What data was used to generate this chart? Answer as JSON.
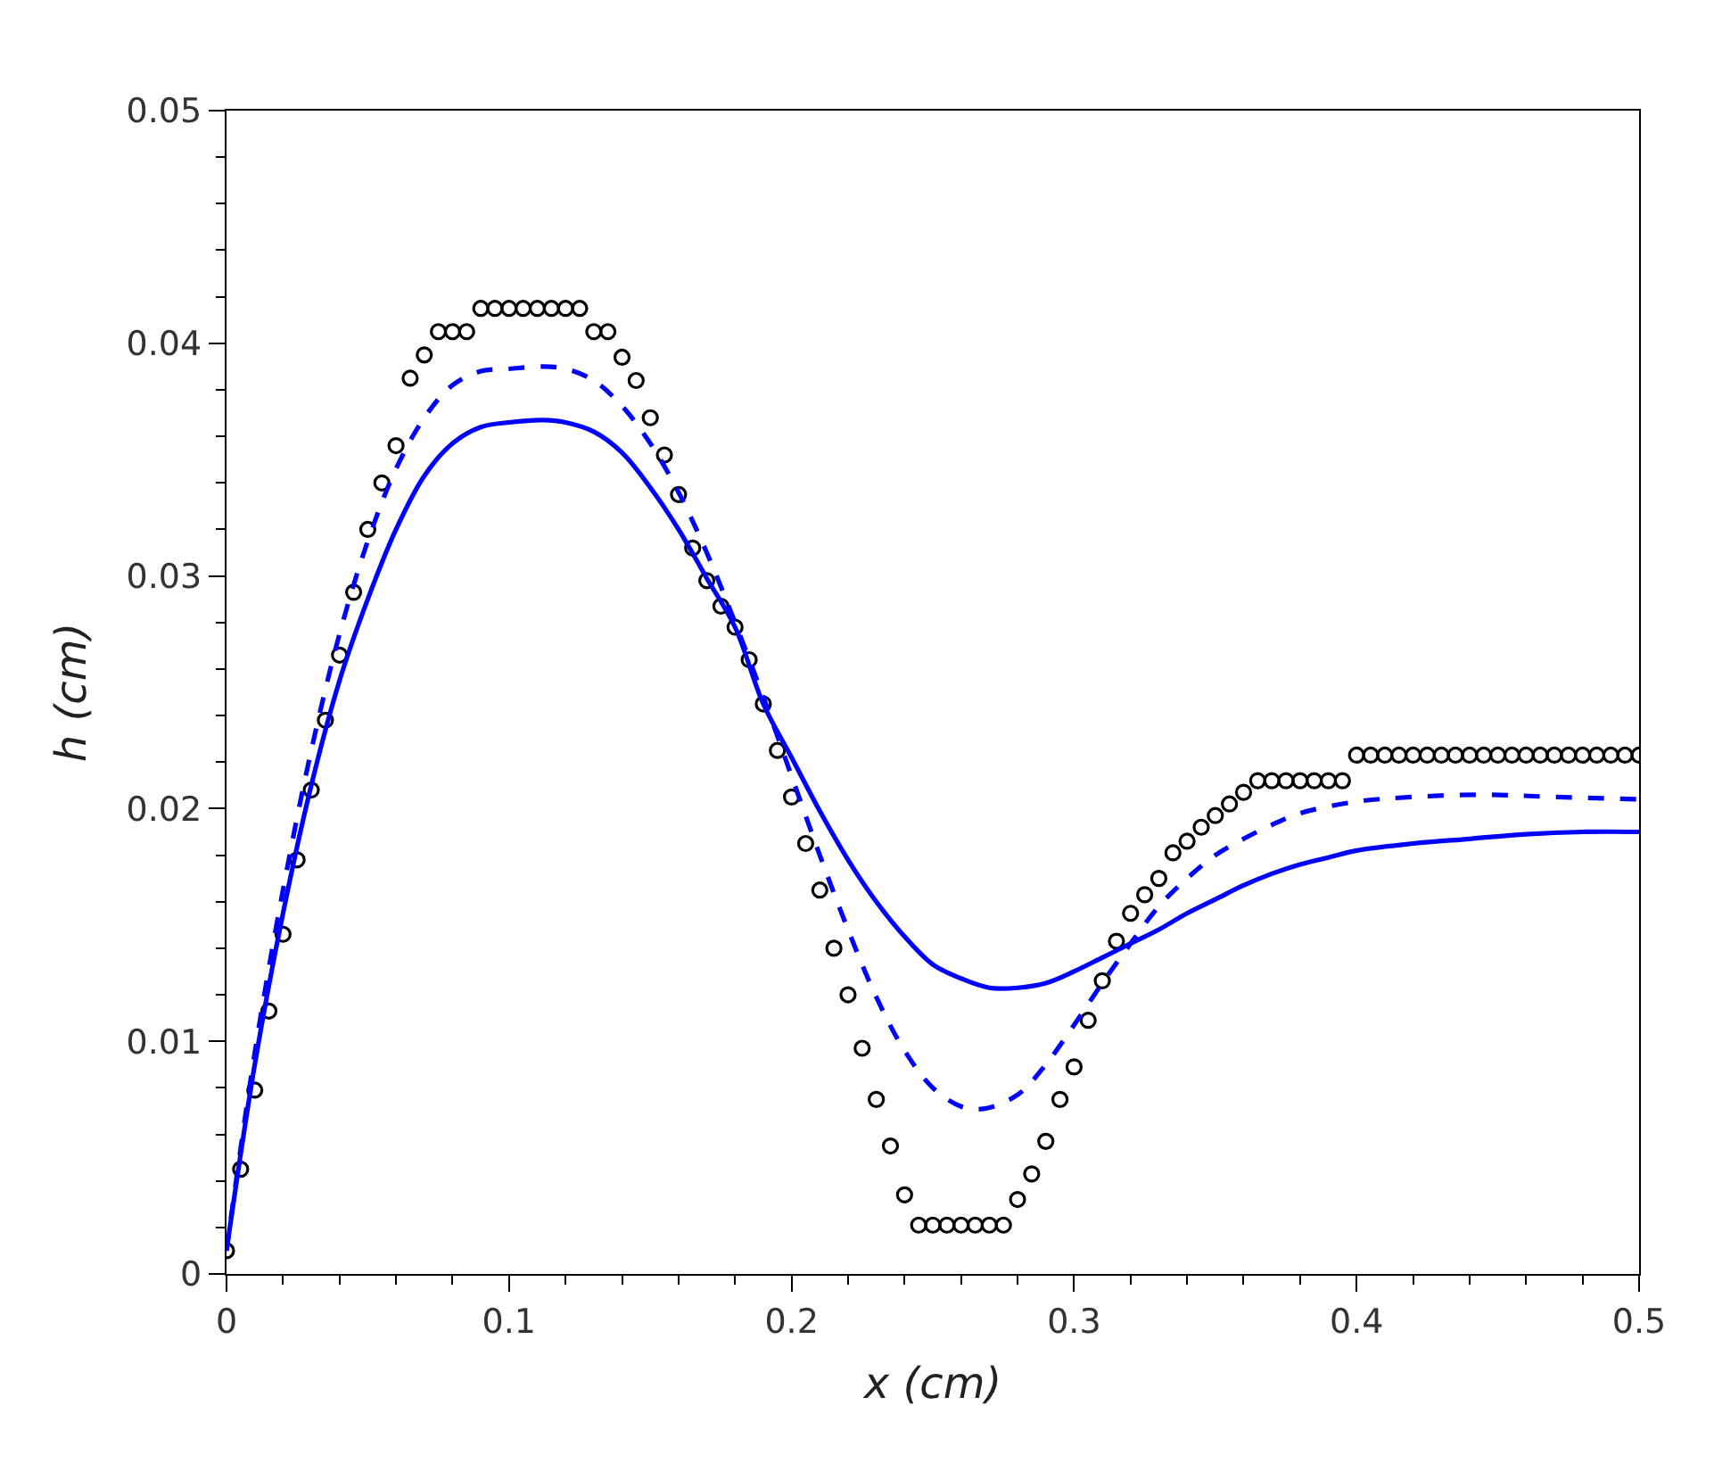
{
  "chart_data": {
    "type": "line",
    "xlabel": "x (cm)",
    "ylabel": "h (cm)",
    "xlim": [
      0,
      0.5
    ],
    "ylim": [
      0,
      0.05
    ],
    "xticks": [
      0,
      {
        "value": 0.02,
        "label": null
      },
      {
        "value": 0.04,
        "label": null
      },
      {
        "value": 0.06,
        "label": null
      },
      {
        "value": 0.08,
        "label": null
      },
      0.1,
      {
        "value": 0.12,
        "label": null
      },
      {
        "value": 0.14,
        "label": null
      },
      {
        "value": 0.16,
        "label": null
      },
      {
        "value": 0.18,
        "label": null
      },
      0.2,
      {
        "value": 0.22,
        "label": null
      },
      {
        "value": 0.24,
        "label": null
      },
      {
        "value": 0.26,
        "label": null
      },
      {
        "value": 0.28,
        "label": null
      },
      0.3,
      {
        "value": 0.32,
        "label": null
      },
      {
        "value": 0.34,
        "label": null
      },
      {
        "value": 0.36,
        "label": null
      },
      {
        "value": 0.38,
        "label": null
      },
      0.4,
      {
        "value": 0.42,
        "label": null
      },
      {
        "value": 0.44,
        "label": null
      },
      {
        "value": 0.46,
        "label": null
      },
      {
        "value": 0.48,
        "label": null
      },
      0.5
    ],
    "yticks": [
      0,
      {
        "value": 0.002,
        "label": null
      },
      {
        "value": 0.004,
        "label": null
      },
      {
        "value": 0.006,
        "label": null
      },
      {
        "value": 0.008,
        "label": null
      },
      0.01,
      {
        "value": 0.012,
        "label": null
      },
      {
        "value": 0.014,
        "label": null
      },
      {
        "value": 0.016,
        "label": null
      },
      {
        "value": 0.018,
        "label": null
      },
      0.02,
      {
        "value": 0.022,
        "label": null
      },
      {
        "value": 0.024,
        "label": null
      },
      {
        "value": 0.026,
        "label": null
      },
      {
        "value": 0.028,
        "label": null
      },
      0.03,
      {
        "value": 0.032,
        "label": null
      },
      {
        "value": 0.034,
        "label": null
      },
      {
        "value": 0.036,
        "label": null
      },
      {
        "value": 0.038,
        "label": null
      },
      0.04,
      {
        "value": 0.042,
        "label": null
      },
      {
        "value": 0.044,
        "label": null
      },
      {
        "value": 0.046,
        "label": null
      },
      {
        "value": 0.048,
        "label": null
      },
      0.05
    ],
    "series": [
      {
        "type": "scatter",
        "marker": "circle",
        "color": "#000000",
        "x": [
          0,
          0.005,
          0.01,
          0.015,
          0.02,
          0.025,
          0.03,
          0.035,
          0.04,
          0.045,
          0.05,
          0.055,
          0.06,
          0.065,
          0.07,
          0.075,
          0.08,
          0.085,
          0.09,
          0.095,
          0.1,
          0.105,
          0.11,
          0.115,
          0.12,
          0.125,
          0.13,
          0.135,
          0.14,
          0.145,
          0.15,
          0.155,
          0.16,
          0.165,
          0.17,
          0.175,
          0.18,
          0.185,
          0.19,
          0.195,
          0.2,
          0.205,
          0.21,
          0.215,
          0.22,
          0.225,
          0.23,
          0.235,
          0.24,
          0.245,
          0.25,
          0.255,
          0.26,
          0.265,
          0.27,
          0.275,
          0.28,
          0.285,
          0.29,
          0.295,
          0.3,
          0.305,
          0.31,
          0.315,
          0.32,
          0.325,
          0.33,
          0.335,
          0.34,
          0.345,
          0.35,
          0.355,
          0.36,
          0.365,
          0.37,
          0.375,
          0.38,
          0.385,
          0.39,
          0.395,
          0.4,
          0.405,
          0.41,
          0.415,
          0.42,
          0.425,
          0.43,
          0.435,
          0.44,
          0.445,
          0.45,
          0.455,
          0.46,
          0.465,
          0.47,
          0.475,
          0.48,
          0.485,
          0.49,
          0.495,
          0.5
        ],
        "values": [
          0.001,
          0.0045,
          0.0079,
          0.0113,
          0.0146,
          0.0178,
          0.0208,
          0.0238,
          0.0266,
          0.0293,
          0.032,
          0.034,
          0.0356,
          0.0385,
          0.0395,
          0.0405,
          0.0405,
          0.0405,
          0.0415,
          0.0415,
          0.0415,
          0.0415,
          0.0415,
          0.0415,
          0.0415,
          0.0415,
          0.0405,
          0.0405,
          0.0394,
          0.0384,
          0.0368,
          0.0352,
          0.0335,
          0.0312,
          0.0298,
          0.0287,
          0.0278,
          0.0264,
          0.0245,
          0.0225,
          0.0205,
          0.0185,
          0.0165,
          0.014,
          0.012,
          0.0097,
          0.0075,
          0.0055,
          0.0034,
          0.0021,
          0.0021,
          0.0021,
          0.0021,
          0.0021,
          0.0021,
          0.0021,
          0.0032,
          0.0043,
          0.0057,
          0.0075,
          0.0089,
          0.0109,
          0.0126,
          0.0143,
          0.0155,
          0.0163,
          0.017,
          0.0181,
          0.0186,
          0.0192,
          0.0197,
          0.0202,
          0.0207,
          0.0212,
          0.0212,
          0.0212,
          0.0212,
          0.0212,
          0.0212,
          0.0212,
          0.0223,
          0.0223,
          0.0223,
          0.0223,
          0.0223,
          0.0223,
          0.0223,
          0.0223,
          0.0223,
          0.0223,
          0.0223,
          0.0223,
          0.0223,
          0.0223,
          0.0223,
          0.0223,
          0.0223,
          0.0223,
          0.0223,
          0.0223,
          0.0223
        ]
      },
      {
        "line_style": "solid",
        "color": "#0000ff",
        "x": [
          0,
          0.01,
          0.02,
          0.03,
          0.04,
          0.05,
          0.06,
          0.07,
          0.08,
          0.09,
          0.1,
          0.112,
          0.12,
          0.13,
          0.14,
          0.15,
          0.16,
          0.17,
          0.18,
          0.19,
          0.2,
          0.21,
          0.22,
          0.23,
          0.24,
          0.25,
          0.26,
          0.27,
          0.28,
          0.29,
          0.3,
          0.31,
          0.32,
          0.33,
          0.34,
          0.35,
          0.36,
          0.37,
          0.38,
          0.39,
          0.4,
          0.42,
          0.44,
          0.46,
          0.48,
          0.5
        ],
        "values": [
          0.001,
          0.009,
          0.0155,
          0.021,
          0.0255,
          0.029,
          0.032,
          0.0343,
          0.0357,
          0.0364,
          0.0366,
          0.0367,
          0.0366,
          0.0362,
          0.0353,
          0.0338,
          0.032,
          0.0299,
          0.0278,
          0.0245,
          0.0222,
          0.0199,
          0.0178,
          0.016,
          0.0145,
          0.0133,
          0.0127,
          0.0123,
          0.0123,
          0.0125,
          0.013,
          0.0136,
          0.0142,
          0.0148,
          0.0155,
          0.0161,
          0.0167,
          0.0172,
          0.0176,
          0.0179,
          0.0182,
          0.0185,
          0.0187,
          0.0189,
          0.019,
          0.019
        ]
      },
      {
        "line_style": "dashed",
        "color": "#0000ff",
        "x": [
          0,
          0.01,
          0.02,
          0.03,
          0.04,
          0.05,
          0.06,
          0.07,
          0.08,
          0.09,
          0.1,
          0.112,
          0.12,
          0.13,
          0.14,
          0.15,
          0.16,
          0.17,
          0.18,
          0.19,
          0.2,
          0.21,
          0.22,
          0.23,
          0.24,
          0.25,
          0.26,
          0.268,
          0.28,
          0.29,
          0.3,
          0.31,
          0.32,
          0.33,
          0.34,
          0.35,
          0.36,
          0.37,
          0.38,
          0.4,
          0.42,
          0.445,
          0.47,
          0.5
        ],
        "values": [
          0.001,
          0.0095,
          0.0165,
          0.0225,
          0.0275,
          0.0315,
          0.0346,
          0.0368,
          0.0382,
          0.0388,
          0.0389,
          0.039,
          0.0389,
          0.0384,
          0.0373,
          0.0357,
          0.0336,
          0.031,
          0.028,
          0.0248,
          0.0214,
          0.018,
          0.0148,
          0.0119,
          0.0096,
          0.008,
          0.0072,
          0.0071,
          0.0077,
          0.009,
          0.0107,
          0.0125,
          0.0142,
          0.0158,
          0.017,
          0.018,
          0.0187,
          0.0193,
          0.0198,
          0.0203,
          0.0205,
          0.0206,
          0.0205,
          0.0204
        ]
      }
    ]
  }
}
